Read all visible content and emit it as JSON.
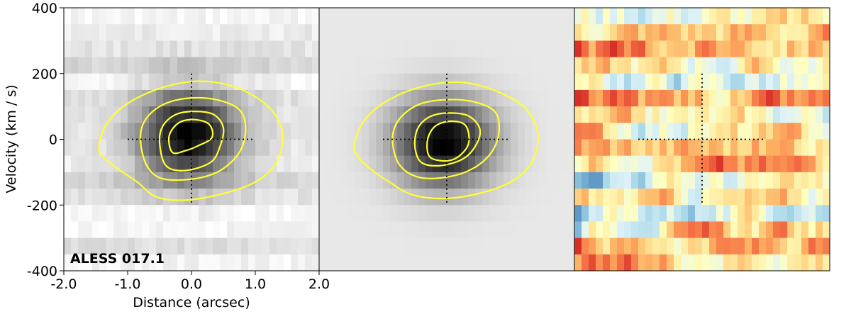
{
  "chart_data": [
    {
      "type": "heatmap",
      "panel": "data",
      "colormap": "greyscale",
      "xlabel": "Distance (arcsec)",
      "ylabel": "Velocity (km / s)",
      "xlim": [
        -2.0,
        2.0
      ],
      "ylim": [
        -400,
        400
      ],
      "xticks": [
        -2.0,
        -1.0,
        0.0,
        1.0,
        2.0
      ],
      "xtick_labels": [
        "-2.0",
        "-1.0",
        "0.0",
        "1.0",
        "2.0"
      ],
      "yticks": [
        -400,
        -200,
        0,
        200,
        400
      ],
      "ytick_labels": [
        "-400",
        "-200",
        "0",
        "200",
        "400"
      ],
      "annotation": "ALESS 017.1",
      "contour_color": "#ffff33",
      "peak": {
        "x": -0.05,
        "y": 10
      },
      "crosshair": {
        "x_range": [
          -1.0,
          1.0
        ],
        "y_range": [
          -200,
          200
        ]
      },
      "contours": [
        {
          "level": 1,
          "points": [
            [
              -1.45,
              -20
            ],
            [
              -1.35,
              40
            ],
            [
              -1.1,
              95
            ],
            [
              -0.7,
              140
            ],
            [
              -0.2,
              170
            ],
            [
              0.3,
              175
            ],
            [
              0.8,
              150
            ],
            [
              1.2,
              100
            ],
            [
              1.4,
              40
            ],
            [
              1.42,
              -20
            ],
            [
              1.3,
              -80
            ],
            [
              1.0,
              -130
            ],
            [
              0.5,
              -165
            ],
            [
              -0.1,
              -185
            ],
            [
              -0.55,
              -175
            ],
            [
              -0.85,
              -130
            ],
            [
              -1.15,
              -90
            ],
            [
              -1.4,
              -50
            ]
          ]
        },
        {
          "level": 2,
          "points": [
            [
              -0.8,
              0
            ],
            [
              -0.72,
              60
            ],
            [
              -0.45,
              105
            ],
            [
              -0.05,
              125
            ],
            [
              0.4,
              120
            ],
            [
              0.75,
              90
            ],
            [
              0.85,
              30
            ],
            [
              0.75,
              -40
            ],
            [
              0.45,
              -95
            ],
            [
              0.05,
              -120
            ],
            [
              -0.45,
              -120
            ],
            [
              -0.7,
              -80
            ]
          ]
        },
        {
          "level": 3,
          "points": [
            [
              -0.5,
              -10
            ],
            [
              -0.45,
              40
            ],
            [
              -0.25,
              75
            ],
            [
              0.05,
              85
            ],
            [
              0.35,
              75
            ],
            [
              0.5,
              35
            ],
            [
              0.45,
              -20
            ],
            [
              0.3,
              -70
            ],
            [
              -0.1,
              -95
            ],
            [
              -0.4,
              -80
            ]
          ]
        },
        {
          "level": 4,
          "points": [
            [
              -0.3,
              -40
            ],
            [
              -0.35,
              10
            ],
            [
              -0.2,
              50
            ],
            [
              0.05,
              60
            ],
            [
              0.28,
              45
            ],
            [
              0.32,
              5
            ],
            [
              0.1,
              -20
            ],
            [
              -0.1,
              -35
            ]
          ]
        }
      ]
    },
    {
      "type": "heatmap",
      "panel": "model",
      "colormap": "greyscale",
      "peak": {
        "x": -0.05,
        "y": -10
      },
      "crosshair": {
        "x_range": [
          -1.0,
          1.0
        ],
        "y_range": [
          -200,
          200
        ]
      },
      "contours": [
        {
          "level": 1,
          "points": [
            [
              -1.45,
              -20
            ],
            [
              -1.35,
              40
            ],
            [
              -1.1,
              95
            ],
            [
              -0.7,
              140
            ],
            [
              -0.2,
              168
            ],
            [
              0.3,
              172
            ],
            [
              0.8,
              145
            ],
            [
              1.2,
              100
            ],
            [
              1.4,
              40
            ],
            [
              1.42,
              -20
            ],
            [
              1.3,
              -80
            ],
            [
              1.0,
              -130
            ],
            [
              0.5,
              -165
            ],
            [
              -0.05,
              -180
            ],
            [
              -0.55,
              -168
            ],
            [
              -0.9,
              -130
            ],
            [
              -1.2,
              -90
            ],
            [
              -1.4,
              -50
            ]
          ]
        },
        {
          "level": 2,
          "points": [
            [
              -0.85,
              0
            ],
            [
              -0.75,
              60
            ],
            [
              -0.45,
              105
            ],
            [
              -0.05,
              120
            ],
            [
              0.4,
              115
            ],
            [
              0.75,
              85
            ],
            [
              0.82,
              25
            ],
            [
              0.7,
              -40
            ],
            [
              0.4,
              -90
            ],
            [
              0.0,
              -115
            ],
            [
              -0.45,
              -115
            ],
            [
              -0.75,
              -75
            ]
          ]
        },
        {
          "level": 3,
          "points": [
            [
              -0.5,
              -20
            ],
            [
              -0.45,
              35
            ],
            [
              -0.25,
              70
            ],
            [
              0.05,
              80
            ],
            [
              0.35,
              70
            ],
            [
              0.52,
              30
            ],
            [
              0.45,
              -20
            ],
            [
              0.25,
              -60
            ],
            [
              -0.1,
              -80
            ],
            [
              -0.4,
              -70
            ]
          ]
        },
        {
          "level": 4,
          "points": [
            [
              -0.28,
              -50
            ],
            [
              -0.3,
              0
            ],
            [
              -0.18,
              40
            ],
            [
              0.05,
              55
            ],
            [
              0.28,
              45
            ],
            [
              0.35,
              5
            ],
            [
              0.3,
              -30
            ],
            [
              0.12,
              -60
            ],
            [
              -0.1,
              -65
            ]
          ]
        }
      ]
    },
    {
      "type": "heatmap",
      "panel": "residual",
      "colormap": "red-yellow-blue",
      "crosshair": {
        "x_range": [
          -1.0,
          1.0
        ],
        "y_range": [
          -200,
          200
        ]
      }
    }
  ]
}
